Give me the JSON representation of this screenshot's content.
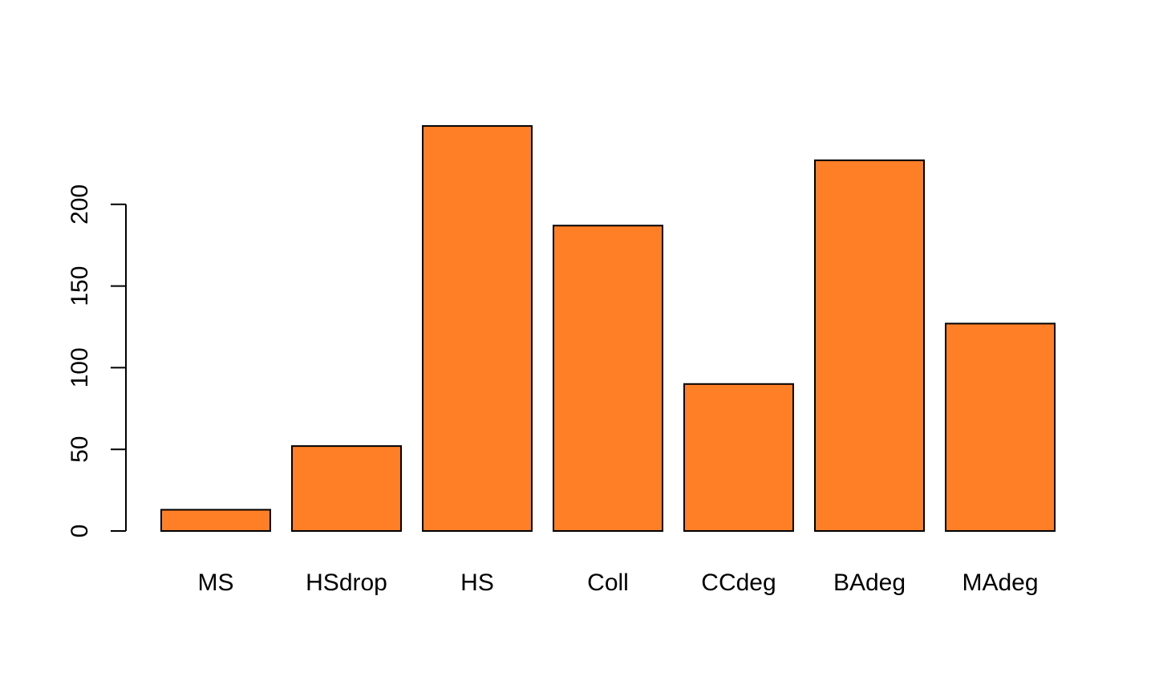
{
  "chart_data": {
    "type": "bar",
    "title": "",
    "xlabel": "",
    "ylabel": "",
    "categories": [
      "MS",
      "HSdrop",
      "HS",
      "Coll",
      "CCdeg",
      "BAdeg",
      "MAdeg"
    ],
    "values": [
      13,
      52,
      248,
      187,
      90,
      227,
      127
    ],
    "ylim": [
      0,
      248
    ],
    "y_ticks": [
      0,
      50,
      100,
      150,
      200
    ],
    "y_tick_labels": [
      "0",
      "50",
      "100",
      "150",
      "200"
    ],
    "grid": false,
    "legend": "none",
    "colors": {
      "bar_fill": "#FF7F27",
      "bar_stroke": "#000000",
      "axis": "#000000",
      "text": "#000000",
      "background": "#FFFFFF"
    }
  }
}
